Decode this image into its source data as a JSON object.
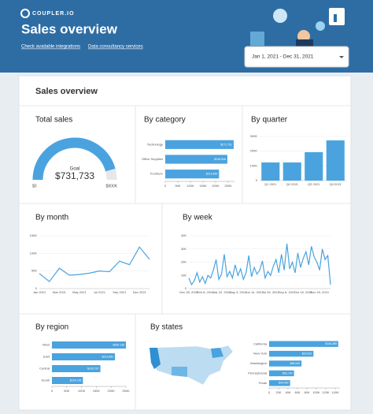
{
  "header": {
    "brand": "COUPLER.IO",
    "title": "Sales overview",
    "links": [
      "Check available integrations",
      "Data consultancy services"
    ],
    "date_range": "Jan 1, 2021 - Dec 31, 2021"
  },
  "report": {
    "title": "Sales overview"
  },
  "chart_data": [
    {
      "type": "gauge",
      "title": "Total sales",
      "value": 731733,
      "value_label": "$731,733",
      "goal_label": "Goal",
      "min": 0,
      "min_label": "$0",
      "max": 800000,
      "max_label": "$800K",
      "color": "#4aa3df"
    },
    {
      "type": "hbar",
      "title": "By category",
      "categories": [
        "Technology",
        "Office Supplies",
        "Furniture"
      ],
      "values": [
        271731,
        246546,
        213456
      ],
      "value_labels": [
        "$271,731",
        "$246,546",
        "$213,456"
      ],
      "color": "#4aa3df",
      "xlim": [
        0,
        275000
      ],
      "xticks": [
        0,
        {
          "value": 50000,
          "label": "50K"
        },
        {
          "value": 100000,
          "label": "100K"
        },
        {
          "value": 150000,
          "label": "150K"
        },
        {
          "value": 200000,
          "label": "200K"
        },
        {
          "value": 250000,
          "label": "250K"
        }
      ],
      "grid": false
    },
    {
      "type": "bar",
      "title": "By quarter",
      "categories": [
        "Q1 2021",
        "Q2 2021",
        "Q3 2021",
        "Q4 2021"
      ],
      "values": [
        123000,
        123000,
        193000,
        273000
      ],
      "color": "#4aa3df",
      "ylim": [
        0,
        300000
      ],
      "yticks": [
        0,
        {
          "value": 100000,
          "label": "100K"
        },
        {
          "value": 200000,
          "label": "200K"
        },
        {
          "value": 300000,
          "label": "300K"
        }
      ],
      "grid": true
    },
    {
      "type": "line",
      "title": "By month",
      "categories": [
        "Jan 2021",
        null,
        "Mar 2021",
        null,
        "May 2021",
        null,
        "Jul 2021",
        null,
        "Sep 2021",
        null,
        "Nov 2021",
        null
      ],
      "values": [
        43000,
        20000,
        58000,
        38000,
        40000,
        44000,
        50000,
        48000,
        78000,
        68000,
        118000,
        83000
      ],
      "color": "#4aa3df",
      "ylim": [
        0,
        150000
      ],
      "yticks": [
        0,
        {
          "value": 50000,
          "label": "50K"
        },
        {
          "value": 100000,
          "label": "100K"
        },
        {
          "value": 150000,
          "label": "150K"
        }
      ],
      "grid": true
    },
    {
      "type": "line",
      "title": "By week",
      "categories": [
        "Dec 28, 2020",
        null,
        null,
        null,
        null,
        null,
        "Feb 8, 2021",
        null,
        null,
        null,
        null,
        null,
        "Mar 22, 2021",
        null,
        null,
        null,
        null,
        null,
        "May 3, 2021",
        null,
        null,
        null,
        null,
        null,
        "Jun 14, 2021",
        null,
        null,
        null,
        null,
        null,
        "Jul 26, 2021",
        null,
        null,
        null,
        null,
        null,
        "Sep 6, 2021",
        null,
        null,
        null,
        null,
        null,
        "Oct 18, 2021",
        null,
        null,
        null,
        null,
        null,
        "Nov 29, 2021",
        null,
        null,
        null,
        null
      ],
      "values": [
        8000,
        3000,
        6000,
        12000,
        5000,
        9000,
        4000,
        10000,
        8000,
        14000,
        22000,
        7000,
        11000,
        26000,
        9000,
        13000,
        8000,
        18000,
        10000,
        15000,
        7000,
        12000,
        25000,
        9000,
        16000,
        11000,
        14000,
        21000,
        8000,
        13000,
        10000,
        17000,
        22000,
        12000,
        26000,
        14000,
        34000,
        15000,
        20000,
        12000,
        27000,
        16000,
        23000,
        28000,
        18000,
        32000,
        24000,
        20000,
        14000,
        30000,
        22000,
        25000,
        3000
      ],
      "color": "#4aa3df",
      "ylim": [
        0,
        40000
      ],
      "yticks": [
        0,
        {
          "value": 10000,
          "label": "10K"
        },
        {
          "value": 20000,
          "label": "20K"
        },
        {
          "value": 30000,
          "label": "30K"
        },
        {
          "value": 40000,
          "label": "40K"
        }
      ],
      "grid": true
    },
    {
      "type": "hbar",
      "title": "By region",
      "categories": [
        "West",
        "East",
        "Central",
        "South"
      ],
      "values": [
        250128,
        213082,
        163797,
        104726
      ],
      "value_labels": [
        "$250,128",
        "$213,082",
        "$163,797",
        "$104,726"
      ],
      "color": "#4aa3df",
      "xlim": [
        0,
        250000
      ],
      "xticks": [
        0,
        {
          "value": 50000,
          "label": "50K"
        },
        {
          "value": 100000,
          "label": "100K"
        },
        {
          "value": 150000,
          "label": "150K"
        },
        {
          "value": 200000,
          "label": "200K"
        },
        {
          "value": 250000,
          "label": "250K"
        }
      ],
      "grid": false
    },
    {
      "type": "hbar",
      "title": "By states",
      "categories": [
        "California",
        "New York",
        "Washington",
        "Pennsylvania",
        "Texas"
      ],
      "values": [
        146388,
        93922,
        68645,
        52700,
        44400
      ],
      "value_labels": [
        "$146,388",
        "$93,922",
        "$68,645",
        "$52,700",
        "$44,400"
      ],
      "color": "#4aa3df",
      "xlim": [
        0,
        150000
      ],
      "xticks": [
        0,
        {
          "value": 20000,
          "label": "20K"
        },
        {
          "value": 40000,
          "label": "40K"
        },
        {
          "value": 60000,
          "label": "60K"
        },
        {
          "value": 80000,
          "label": "80K"
        },
        {
          "value": 100000,
          "label": "100K"
        },
        {
          "value": 120000,
          "label": "120K"
        },
        {
          "value": 140000,
          "label": "140K"
        }
      ],
      "grid": false
    }
  ]
}
